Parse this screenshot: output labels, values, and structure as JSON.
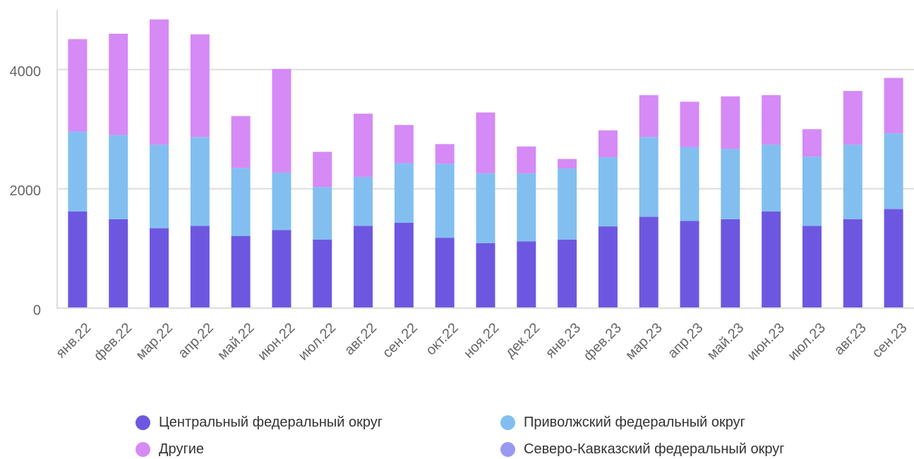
{
  "chart_data": {
    "type": "bar",
    "stacked": true,
    "categories": [
      "янв.22",
      "фев.22",
      "мар.22",
      "апр.22",
      "май.22",
      "июн.22",
      "июл.22",
      "авг.22",
      "сен.22",
      "окт.22",
      "ноя.22",
      "дек.22",
      "янв.23",
      "фев.23",
      "мар.23",
      "апр.23",
      "май.23",
      "июн.23",
      "июл.23",
      "авг.23",
      "сен.23"
    ],
    "series": [
      {
        "name": "Центральный федеральный округ",
        "color": "#6e57e0",
        "values": [
          1620,
          1490,
          1340,
          1380,
          1210,
          1310,
          1150,
          1380,
          1430,
          1180,
          1090,
          1120,
          1150,
          1370,
          1530,
          1460,
          1490,
          1620,
          1380,
          1490,
          1660
        ]
      },
      {
        "name": "Приволжский федеральный округ",
        "color": "#82bff0",
        "values": [
          1340,
          1410,
          1400,
          1490,
          1140,
          960,
          880,
          820,
          1000,
          1240,
          1170,
          1140,
          1190,
          1160,
          1340,
          1240,
          1180,
          1120,
          1160,
          1250,
          1270
        ]
      },
      {
        "name": "Северо-Кавказский федеральный округ",
        "color": "#9a99f2",
        "values": [
          0,
          0,
          0,
          0,
          0,
          0,
          0,
          0,
          0,
          0,
          0,
          0,
          0,
          0,
          0,
          0,
          0,
          0,
          0,
          0,
          0
        ]
      },
      {
        "name": "Другие",
        "color": "#d58af5",
        "values": [
          1550,
          1700,
          2100,
          1720,
          870,
          1740,
          590,
          1060,
          640,
          330,
          1020,
          450,
          160,
          450,
          700,
          760,
          880,
          830,
          460,
          900,
          930
        ]
      }
    ],
    "ylim": [
      0,
      5000
    ],
    "yticks": [
      "0",
      "2000",
      "4000"
    ],
    "ytick_values": [
      0,
      2000,
      4000
    ],
    "grid": true,
    "legend_position": "bottom"
  },
  "legend": [
    {
      "label": "Центральный федеральный округ",
      "color": "#6e57e0"
    },
    {
      "label": "Приволжский федеральный округ",
      "color": "#82bff0"
    },
    {
      "label": "Другие",
      "color": "#d58af5"
    },
    {
      "label": "Северо-Кавказский федеральный округ",
      "color": "#9a99f2"
    }
  ]
}
